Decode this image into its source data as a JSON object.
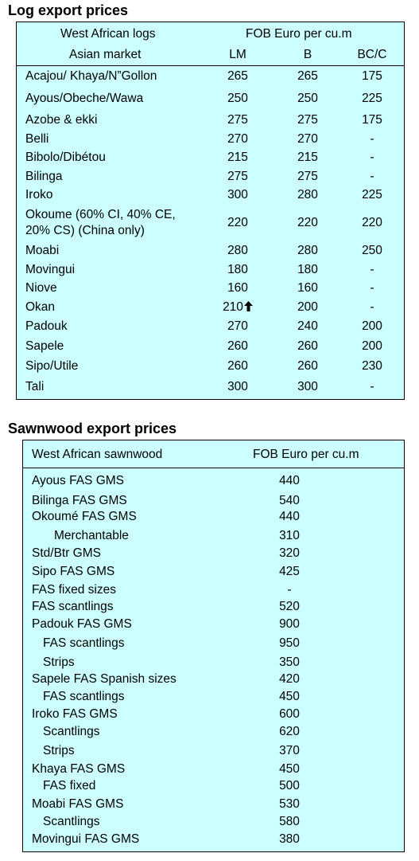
{
  "log_section": {
    "title": "Log export prices",
    "header_line1": "West African logs",
    "header_line1_right": "FOB Euro per cu.m",
    "header_line2": "Asian market",
    "col_lm": "LM",
    "col_b": "B",
    "col_bcc": "BC/C",
    "rows": [
      {
        "name": "Acajou/ Khaya/N”Gollon",
        "lm": "265",
        "b": "265",
        "bcc": "175"
      },
      {
        "name": "Ayous/Obeche/Wawa",
        "lm": "250",
        "b": "250",
        "bcc": "225"
      },
      {
        "name": "Azobe & ekki",
        "lm": "275",
        "b": "275",
        "bcc": "175"
      },
      {
        "name": "Belli",
        "lm": "270",
        "b": "270",
        "bcc": "-"
      },
      {
        "name": "Bibolo/Dibétou",
        "lm": "215",
        "b": "215",
        "bcc": "-"
      },
      {
        "name": "Bilinga",
        "lm": "275",
        "b": "275",
        "bcc": "-"
      },
      {
        "name": "Iroko",
        "lm": "300",
        "b": "280",
        "bcc": "225"
      },
      {
        "name": "Okoume (60% CI, 40% CE,",
        "name2": "20% CS) (China only)",
        "lm": "220",
        "b": "220",
        "bcc": "220"
      },
      {
        "name": "Moabi",
        "lm": "280",
        "b": "280",
        "bcc": "250"
      },
      {
        "name": "Movingui",
        "lm": "180",
        "b": "180",
        "bcc": "-"
      },
      {
        "name": "Niove",
        "lm": "160",
        "b": "160",
        "bcc": "-"
      },
      {
        "name": "Okan",
        "lm": "210",
        "b": "200",
        "bcc": "-",
        "trend": "up-arrow-icon"
      },
      {
        "name": "Padouk",
        "lm": "270",
        "b": "240",
        "bcc": "200"
      },
      {
        "name": "Sapele",
        "lm": "260",
        "b": "260",
        "bcc": "200"
      },
      {
        "name": "Sipo/Utile",
        "lm": "260",
        "b": "260",
        "bcc": "230"
      },
      {
        "name": "Tali",
        "lm": "300",
        "b": "300",
        "bcc": "-"
      }
    ]
  },
  "sawn_section": {
    "title": "Sawnwood export prices",
    "header_left": "West African sawnwood",
    "header_right": "FOB Euro per cu.m",
    "rows": [
      {
        "name": "Ayous FAS GMS",
        "value": "440",
        "indent": 0
      },
      {
        "name": "Bilinga FAS GMS",
        "value": "540",
        "indent": 0
      },
      {
        "name": "Okoumé FAS GMS",
        "value": "440",
        "indent": 0
      },
      {
        "name": "Merchantable",
        "value": "310",
        "indent": 2
      },
      {
        "name": "Std/Btr GMS",
        "value": "320",
        "indent": 0
      },
      {
        "name": "Sipo FAS GMS",
        "value": "425",
        "indent": 0
      },
      {
        "name": "FAS fixed sizes",
        "value": "-",
        "indent": 0
      },
      {
        "name": "FAS scantlings",
        "value": "520",
        "indent": 0
      },
      {
        "name": "Padouk FAS GMS",
        "value": "900",
        "indent": 0
      },
      {
        "name": "FAS scantlings",
        "value": "950",
        "indent": 1
      },
      {
        "name": "Strips",
        "value": "350",
        "indent": 1
      },
      {
        "name": "Sapele FAS Spanish sizes",
        "value": "420",
        "indent": 0
      },
      {
        "name": "FAS scantlings",
        "value": "450",
        "indent": 1
      },
      {
        "name": "Iroko FAS GMS",
        "value": "600",
        "indent": 0
      },
      {
        "name": "Scantlings",
        "value": "620",
        "indent": 1
      },
      {
        "name": "Strips",
        "value": "370",
        "indent": 1
      },
      {
        "name": "Khaya FAS GMS",
        "value": "450",
        "indent": 0
      },
      {
        "name": "FAS fixed",
        "value": "500",
        "indent": 1
      },
      {
        "name": "Moabi FAS GMS",
        "value": "530",
        "indent": 0
      },
      {
        "name": "Scantlings",
        "value": "580",
        "indent": 1
      },
      {
        "name": "Movingui FAS GMS",
        "value": "380",
        "indent": 0
      }
    ]
  }
}
